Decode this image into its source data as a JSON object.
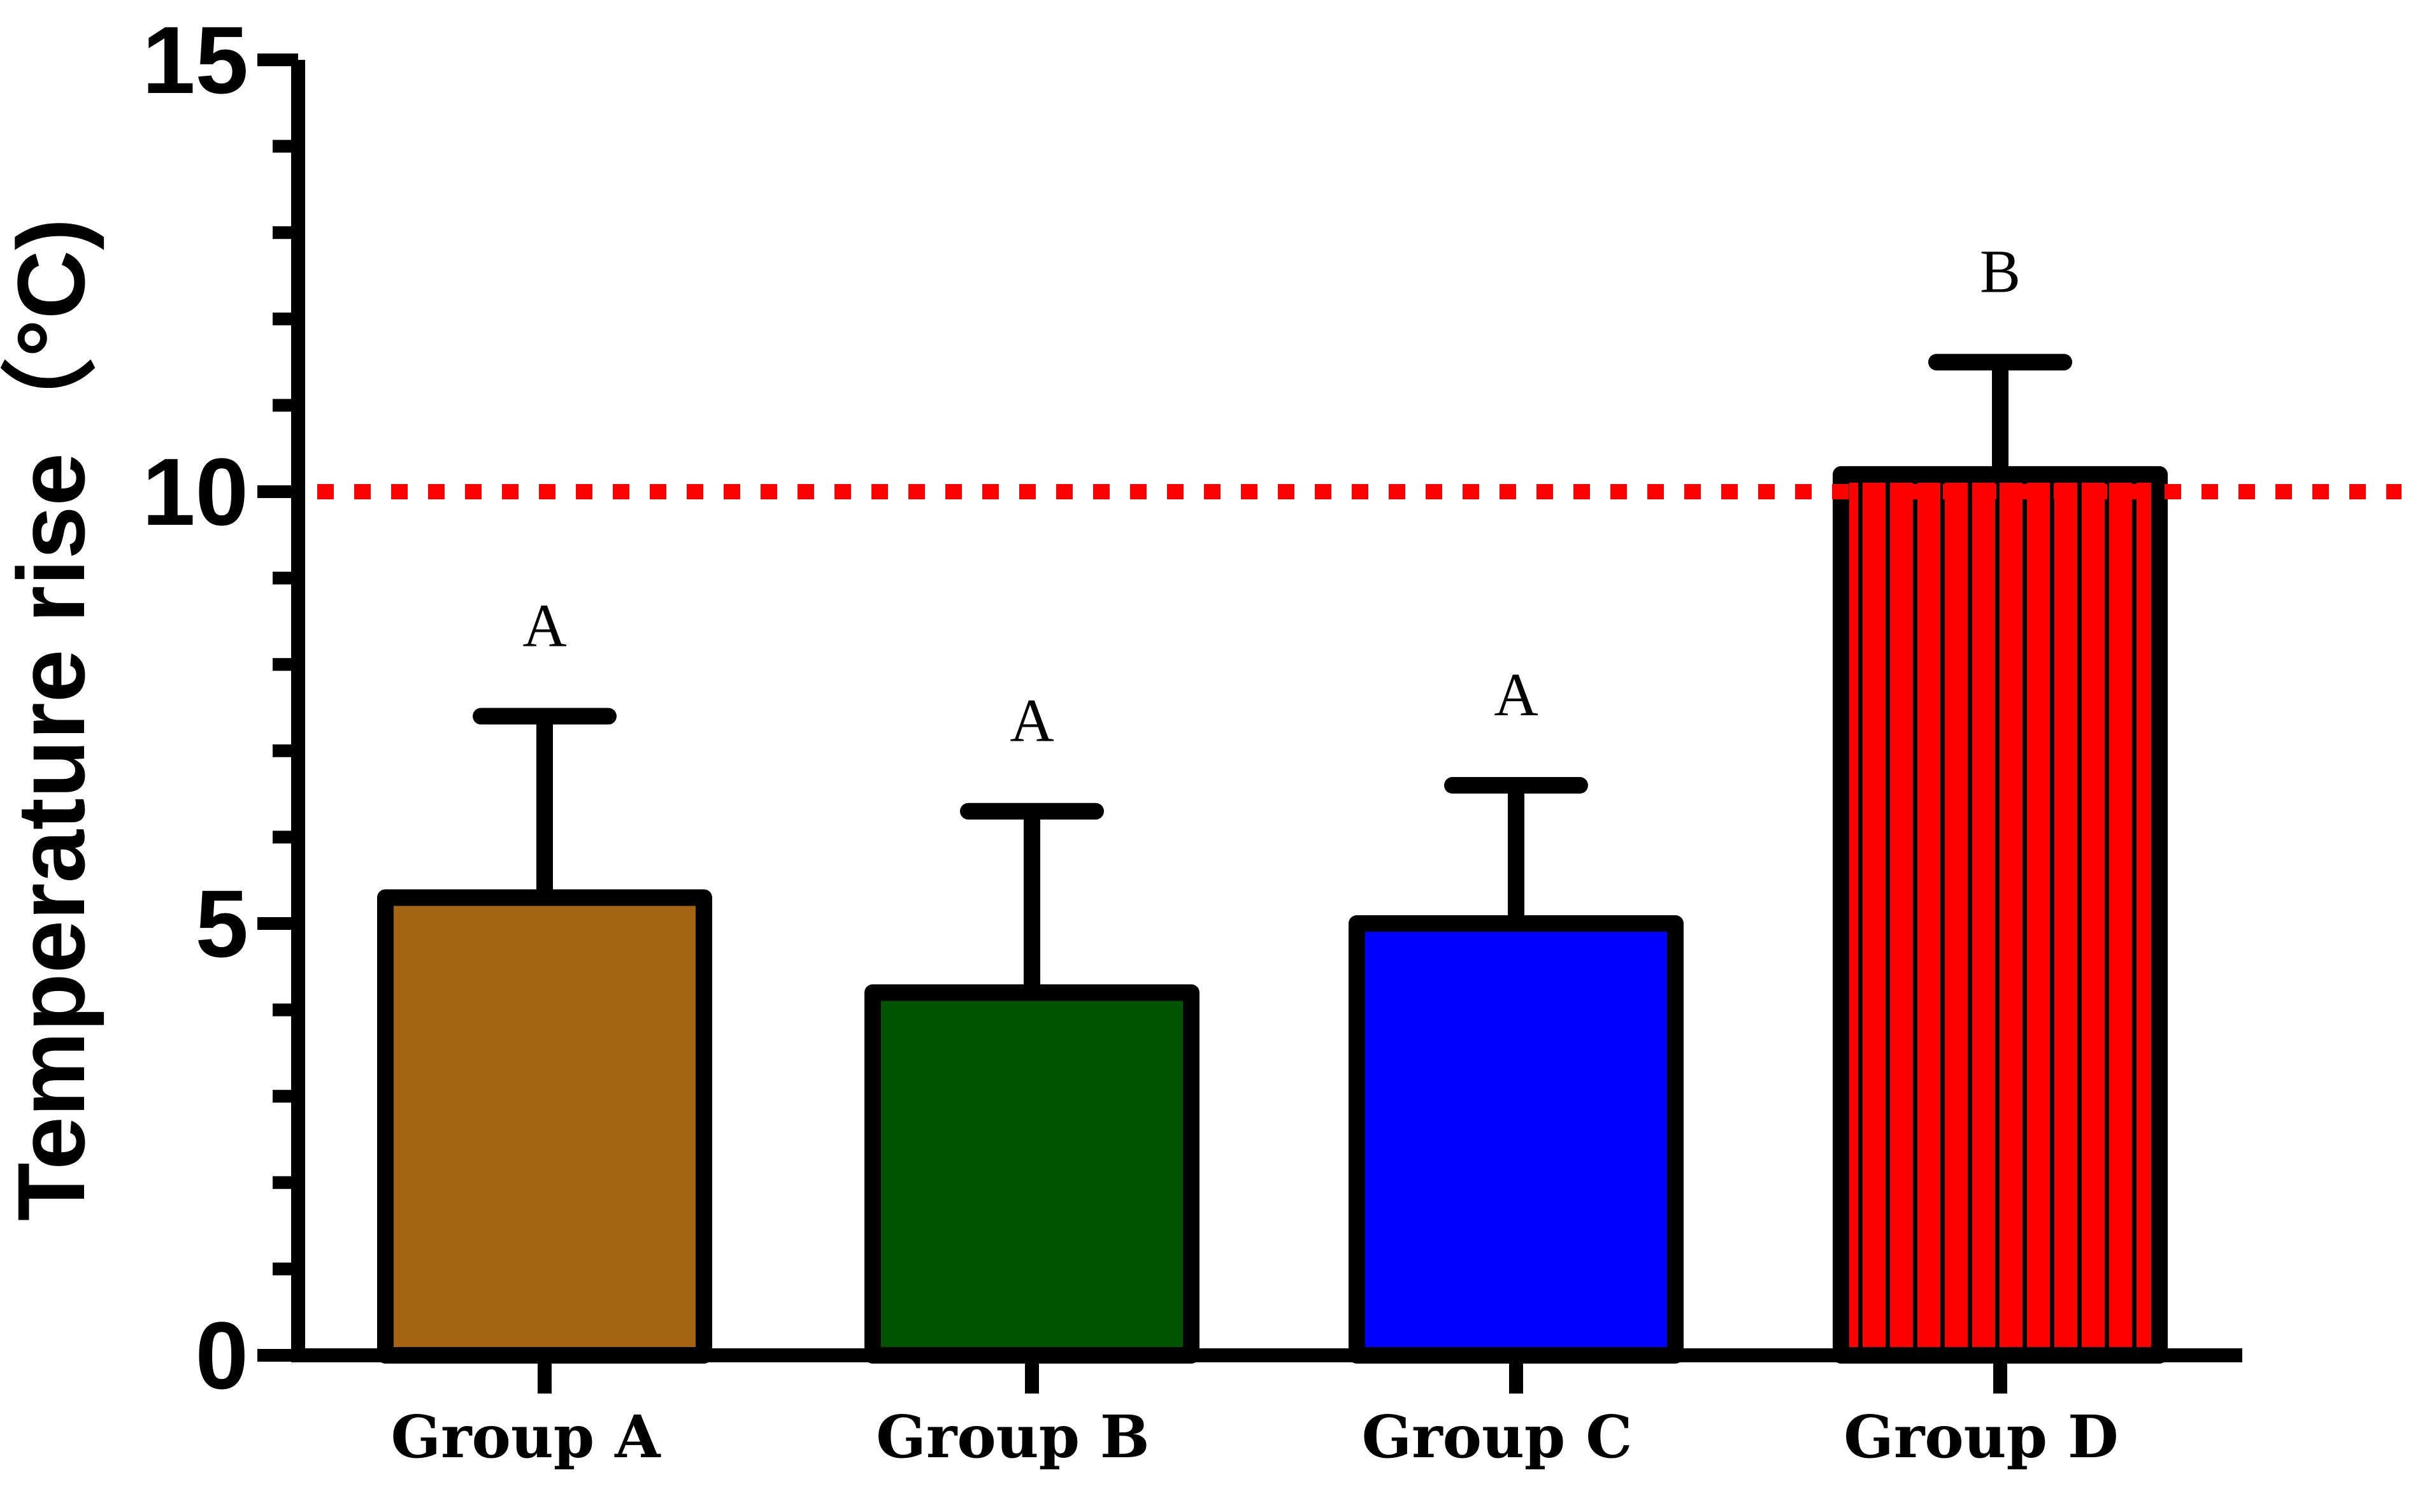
{
  "chart_data": {
    "type": "bar",
    "title": "",
    "xlabel": "",
    "ylabel": "Temperature rise（°C)",
    "ylim": [
      0,
      15
    ],
    "y_major_ticks": [
      0,
      5,
      10,
      15
    ],
    "y_minor_ticks": [
      0,
      1,
      2,
      3,
      4,
      5,
      6,
      7,
      8,
      9,
      10,
      11,
      12,
      13,
      14,
      15
    ],
    "categories": [
      "Group A",
      "Group B",
      "Group C",
      "Group D"
    ],
    "values": [
      5.3,
      4.2,
      5.0,
      10.2
    ],
    "error_upper": [
      2.1,
      2.1,
      1.6,
      1.3
    ],
    "significance_letters": [
      "A",
      "A",
      "A",
      "B"
    ],
    "bar_colors": [
      "#a46414",
      "#005500",
      "#0000ff",
      "#ff0000"
    ],
    "bar_hatch": [
      false,
      false,
      false,
      true
    ],
    "reference_line": {
      "value": 10,
      "color": "#ff0000",
      "style": "dotted"
    },
    "grid": false,
    "legend": "none"
  }
}
